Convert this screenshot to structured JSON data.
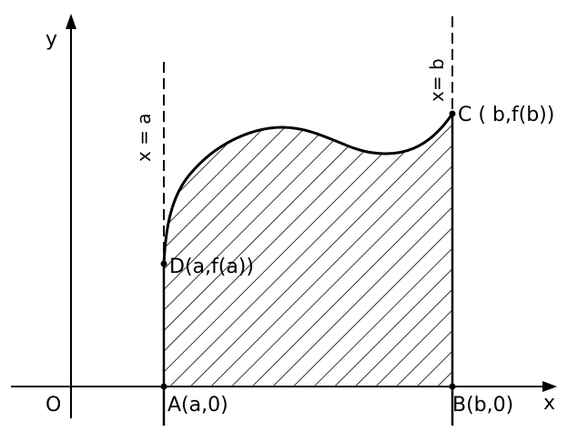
{
  "diagram": {
    "axes": {
      "x_label": "x",
      "y_label": "y",
      "origin_label": "O"
    },
    "lines": {
      "left_label": "x = a",
      "right_label": "x= b"
    },
    "points": {
      "A": "A(a,0)",
      "B": "B(b,0)",
      "C": "C ( b,f(b))",
      "D": "D(a,f(a))"
    },
    "region": {
      "fill": "hatched",
      "stroke_color": "#000000"
    }
  }
}
